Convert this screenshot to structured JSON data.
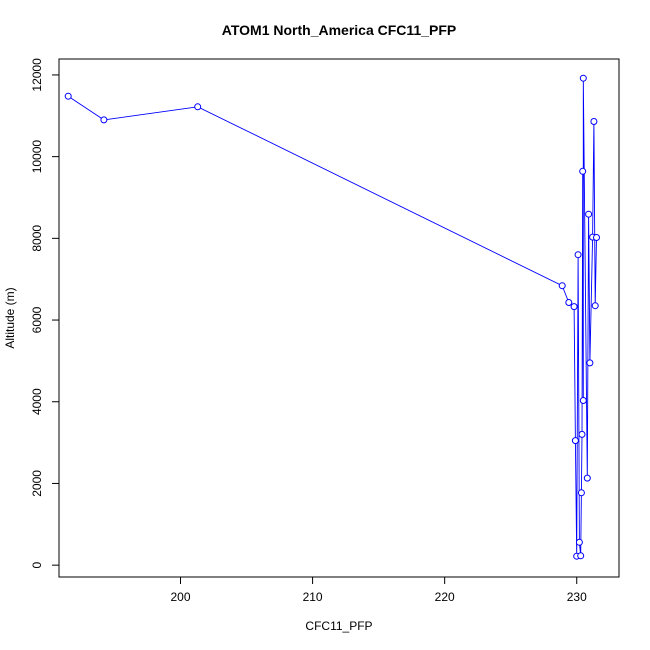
{
  "chart_data": {
    "type": "scatter",
    "title": "ATOM1 North_America CFC11_PFP",
    "xlabel": "CFC11_PFP",
    "ylabel": "Altitude (m)",
    "xlim": [
      190.8,
      233.2
    ],
    "ylim": [
      -290,
      12390
    ],
    "xticks": [
      200,
      210,
      220,
      230
    ],
    "yticks": [
      0,
      2000,
      4000,
      6000,
      8000,
      10000,
      12000
    ],
    "grid": false,
    "legend": "none",
    "colors": {
      "points": "#0000ff",
      "lines": "#0000ff",
      "axes": "#000000"
    },
    "series": [
      {
        "x": [
          191.5,
          194.2,
          201.3,
          228.9,
          229.4,
          229.8,
          229.9,
          230.0,
          230.1,
          230.2,
          230.3,
          230.35,
          230.4,
          230.45,
          230.5,
          230.5,
          230.8,
          230.9,
          231.0,
          231.2,
          231.3,
          231.4,
          231.5
        ],
        "y": [
          11480,
          10900,
          11220,
          6840,
          6430,
          6330,
          3050,
          220,
          7600,
          560,
          230,
          1770,
          3200,
          9640,
          4030,
          11920,
          2130,
          8590,
          4950,
          8030,
          10860,
          6350,
          8020
        ]
      }
    ]
  }
}
